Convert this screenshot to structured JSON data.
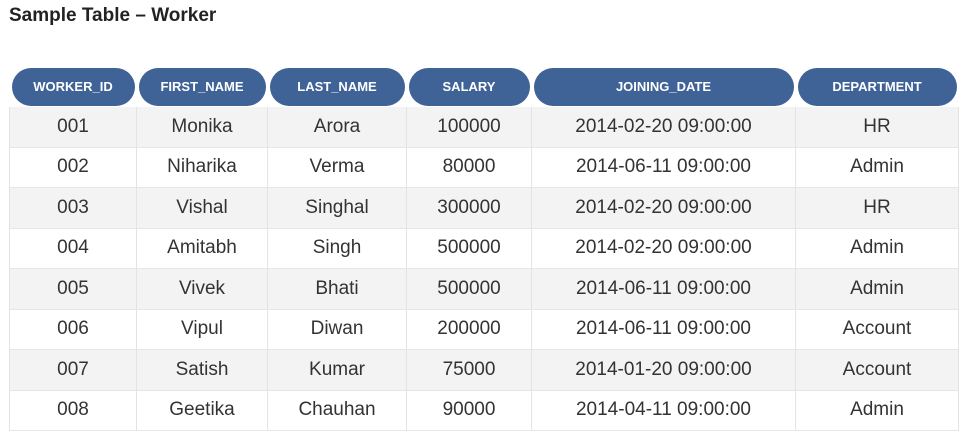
{
  "title": "Sample Table – Worker",
  "table": {
    "columns": [
      "WORKER_ID",
      "FIRST_NAME",
      "LAST_NAME",
      "SALARY",
      "JOINING_DATE",
      "DEPARTMENT"
    ],
    "rows": [
      [
        "001",
        "Monika",
        "Arora",
        "100000",
        "2014-02-20 09:00:00",
        "HR"
      ],
      [
        "002",
        "Niharika",
        "Verma",
        "80000",
        "2014-06-11 09:00:00",
        "Admin"
      ],
      [
        "003",
        "Vishal",
        "Singhal",
        "300000",
        "2014-02-20 09:00:00",
        "HR"
      ],
      [
        "004",
        "Amitabh",
        "Singh",
        "500000",
        "2014-02-20 09:00:00",
        "Admin"
      ],
      [
        "005",
        "Vivek",
        "Bhati",
        "500000",
        "2014-06-11 09:00:00",
        "Admin"
      ],
      [
        "006",
        "Vipul",
        "Diwan",
        "200000",
        "2014-06-11 09:00:00",
        "Account"
      ],
      [
        "007",
        "Satish",
        "Kumar",
        "75000",
        "2014-01-20 09:00:00",
        "Account"
      ],
      [
        "008",
        "Geetika",
        "Chauhan",
        "90000",
        "2014-04-11 09:00:00",
        "Admin"
      ]
    ]
  },
  "colors": {
    "header_bg": "#3f6396",
    "header_text": "#ffffff",
    "row_alt_bg": "#f3f3f3",
    "row_bg": "#ffffff"
  }
}
